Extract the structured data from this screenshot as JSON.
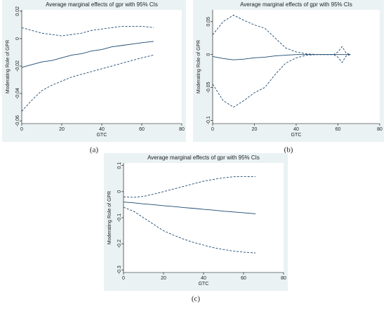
{
  "chart_data": [
    {
      "type": "line",
      "label": "(a)",
      "title": "Average marginal effects of gpr with 95% CIs",
      "x_label": "GTC",
      "y_label": "Moderating Role of GPR",
      "x": [
        0,
        5,
        10,
        15,
        20,
        25,
        30,
        35,
        40,
        45,
        50,
        55,
        60,
        66
      ],
      "series": [
        {
          "color": "#1a476f",
          "style": "solid",
          "values": [
            -0.021,
            -0.019,
            -0.017,
            -0.016,
            -0.014,
            -0.012,
            -0.011,
            -0.009,
            -0.008,
            -0.006,
            -0.005,
            -0.004,
            -0.003,
            -0.002
          ]
        },
        {
          "color": "#1a476f",
          "style": "dashed",
          "values": [
            0.008,
            0.006,
            0.004,
            0.003,
            0.002,
            0.003,
            0.004,
            0.006,
            0.007,
            0.008,
            0.009,
            0.009,
            0.009,
            0.008
          ]
        },
        {
          "color": "#1a476f",
          "style": "dashed",
          "values": [
            -0.053,
            -0.045,
            -0.038,
            -0.034,
            -0.031,
            -0.028,
            -0.026,
            -0.024,
            -0.022,
            -0.02,
            -0.018,
            -0.016,
            -0.014,
            -0.012
          ]
        }
      ],
      "xlim": [
        0,
        80
      ],
      "xticks": [
        0,
        20,
        40,
        60,
        80
      ],
      "ylim": [
        -0.062,
        0.021
      ],
      "yticks": [
        -0.06,
        -0.04,
        -0.02,
        0,
        0.02
      ]
    },
    {
      "type": "line",
      "label": "(b)",
      "title": "Average marginal effects of gpr with 95% CIs",
      "x_label": "GTC",
      "y_label": "Moderating Role of GPR",
      "x": [
        0,
        5,
        10,
        15,
        20,
        25,
        30,
        35,
        40,
        45,
        50,
        55,
        58,
        60,
        62,
        64,
        66
      ],
      "series": [
        {
          "color": "#1a476f",
          "style": "solid",
          "values": [
            -0.003,
            -0.006,
            -0.008,
            -0.007,
            -0.005,
            -0.004,
            -0.002,
            -0.001,
            0,
            0,
            0,
            0,
            0,
            0,
            0,
            0,
            0
          ]
        },
        {
          "color": "#1a476f",
          "style": "dashed",
          "values": [
            0.03,
            0.05,
            0.06,
            0.052,
            0.045,
            0.04,
            0.025,
            0.01,
            0.004,
            0.001,
            0,
            0,
            0,
            0.004,
            0.012,
            0.002,
            0
          ]
        },
        {
          "color": "#1a476f",
          "style": "dashed",
          "values": [
            -0.045,
            -0.07,
            -0.08,
            -0.07,
            -0.058,
            -0.05,
            -0.03,
            -0.013,
            -0.005,
            -0.001,
            0,
            0,
            0,
            -0.004,
            -0.012,
            -0.002,
            0
          ]
        }
      ],
      "xlim": [
        0,
        80
      ],
      "xticks": [
        0,
        20,
        40,
        60,
        80
      ],
      "ylim": [
        -0.105,
        0.068
      ],
      "yticks": [
        -0.1,
        -0.05,
        0,
        0.05
      ]
    },
    {
      "type": "line",
      "label": "(c)",
      "title": "Average marginal effects of gpr with 95% CIs",
      "x_label": "GTC",
      "y_label": "Moderating Role of GPR",
      "x": [
        0,
        5,
        10,
        15,
        20,
        25,
        30,
        35,
        40,
        45,
        50,
        55,
        60,
        66
      ],
      "series": [
        {
          "color": "#1a476f",
          "style": "solid",
          "values": [
            -0.04,
            -0.043,
            -0.047,
            -0.05,
            -0.054,
            -0.057,
            -0.061,
            -0.064,
            -0.068,
            -0.071,
            -0.075,
            -0.078,
            -0.081,
            -0.085
          ]
        },
        {
          "color": "#1a476f",
          "style": "dashed",
          "values": [
            -0.02,
            -0.022,
            -0.018,
            -0.01,
            0,
            0.01,
            0.02,
            0.03,
            0.04,
            0.047,
            0.053,
            0.057,
            0.058,
            0.057
          ]
        },
        {
          "color": "#1a476f",
          "style": "dashed",
          "values": [
            -0.06,
            -0.075,
            -0.1,
            -0.125,
            -0.15,
            -0.167,
            -0.182,
            -0.195,
            -0.205,
            -0.215,
            -0.222,
            -0.228,
            -0.232,
            -0.235
          ]
        }
      ],
      "xlim": [
        0,
        80
      ],
      "xticks": [
        0,
        20,
        40,
        60,
        80
      ],
      "ylim": [
        -0.31,
        0.11
      ],
      "yticks": [
        -0.3,
        -0.2,
        -0.1,
        0,
        0.1
      ]
    }
  ]
}
